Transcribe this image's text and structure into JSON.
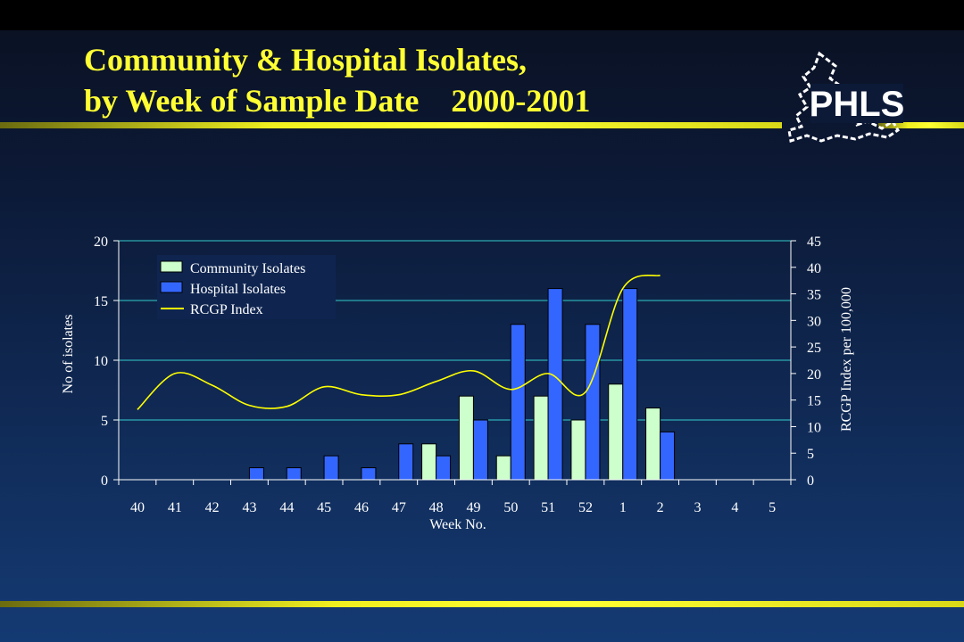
{
  "slide": {
    "title_line1": "Community & Hospital Isolates,",
    "title_line2": "by Week of Sample Date    2000-2001",
    "logo_text": "PHLS",
    "colors": {
      "title": "#ffff33",
      "rule": "#ffff33",
      "community_bar": "#ccffcc",
      "hospital_bar": "#3366ff",
      "rcgp_line": "#ffff00",
      "gridline": "#33cccc"
    }
  },
  "chart_data": {
    "type": "bar",
    "x_label": "Week No.",
    "y_label": "No of isolates",
    "y2_label": "RCGP Index per 100,000",
    "categories": [
      "40",
      "41",
      "42",
      "43",
      "44",
      "45",
      "46",
      "47",
      "48",
      "49",
      "50",
      "51",
      "52",
      "1",
      "2",
      "3",
      "4",
      "5"
    ],
    "ylim": [
      0,
      20
    ],
    "y_ticks": [
      "0",
      "5",
      "10",
      "15",
      "20"
    ],
    "y2lim": [
      0,
      45
    ],
    "y2_ticks": [
      "0",
      "5",
      "10",
      "15",
      "20",
      "25",
      "30",
      "35",
      "40",
      "45"
    ],
    "grid": "horizontal, primary axis",
    "legend_position": "top-left",
    "legend": [
      "Community Isolates",
      "Hospital Isolates",
      "RCGP Index"
    ],
    "series": [
      {
        "name": "Community Isolates",
        "type": "bar",
        "axis": "left",
        "values": [
          0,
          0,
          0,
          0,
          0,
          0,
          0,
          0,
          3,
          7,
          2,
          7,
          5,
          8,
          6,
          0,
          0,
          0
        ]
      },
      {
        "name": "Hospital Isolates",
        "type": "bar",
        "axis": "left",
        "values": [
          0,
          0,
          0,
          1,
          1,
          2,
          1,
          3,
          2,
          5,
          13,
          16,
          13,
          16,
          4,
          0,
          0,
          0
        ]
      },
      {
        "name": "RCGP Index",
        "type": "line",
        "axis": "right",
        "values": [
          13.2,
          20,
          17.8,
          14,
          13.8,
          17.5,
          16,
          16,
          18.5,
          20.5,
          17,
          20,
          16.5,
          36,
          38.5,
          null,
          null,
          null
        ]
      }
    ]
  }
}
